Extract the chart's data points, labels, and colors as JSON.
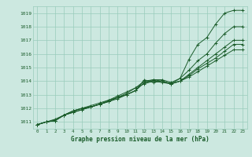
{
  "xlabel": "Graphe pression niveau de la mer (hPa)",
  "bg_color": "#cce8e0",
  "grid_color": "#99ccbb",
  "line_color": "#1a5c2a",
  "text_color": "#1a5c2a",
  "xlim": [
    -0.5,
    23.5
  ],
  "ylim": [
    1010.5,
    1019.5
  ],
  "yticks": [
    1011,
    1012,
    1013,
    1014,
    1015,
    1016,
    1017,
    1018,
    1019
  ],
  "xticks": [
    0,
    1,
    2,
    3,
    4,
    5,
    6,
    7,
    8,
    9,
    10,
    11,
    12,
    13,
    14,
    15,
    16,
    17,
    18,
    19,
    20,
    21,
    22,
    23
  ],
  "series": [
    {
      "x": [
        0,
        1,
        2,
        3,
        4,
        5,
        6,
        7,
        8,
        9,
        10,
        11,
        12,
        13,
        14,
        15,
        16,
        17,
        18,
        19,
        20,
        21,
        22,
        23
      ],
      "y": [
        1010.8,
        1011.0,
        1011.1,
        1011.5,
        1011.8,
        1012.0,
        1012.1,
        1012.3,
        1012.5,
        1012.7,
        1013.0,
        1013.3,
        1014.1,
        1013.9,
        1014.0,
        1013.8,
        1014.2,
        1015.6,
        1016.7,
        1017.2,
        1018.2,
        1019.0,
        1019.2,
        1019.2
      ]
    },
    {
      "x": [
        0,
        1,
        2,
        3,
        4,
        5,
        6,
        7,
        8,
        9,
        10,
        11,
        12,
        13,
        14,
        15,
        16,
        17,
        18,
        19,
        20,
        21,
        22,
        23
      ],
      "y": [
        1010.8,
        1011.0,
        1011.1,
        1011.5,
        1011.8,
        1012.0,
        1012.1,
        1012.3,
        1012.6,
        1012.8,
        1013.1,
        1013.5,
        1014.0,
        1014.1,
        1014.1,
        1013.9,
        1014.2,
        1014.8,
        1015.5,
        1016.0,
        1016.8,
        1017.5,
        1018.0,
        1018.0
      ]
    },
    {
      "x": [
        0,
        1,
        2,
        3,
        4,
        5,
        6,
        7,
        8,
        9,
        10,
        11,
        12,
        13,
        14,
        15,
        16,
        17,
        18,
        19,
        20,
        21,
        22,
        23
      ],
      "y": [
        1010.8,
        1011.0,
        1011.1,
        1011.5,
        1011.7,
        1011.9,
        1012.1,
        1012.3,
        1012.5,
        1012.8,
        1013.0,
        1013.3,
        1013.9,
        1014.1,
        1014.0,
        1013.8,
        1014.0,
        1014.5,
        1015.0,
        1015.5,
        1016.0,
        1016.5,
        1017.0,
        1017.0
      ]
    },
    {
      "x": [
        0,
        1,
        2,
        3,
        4,
        5,
        6,
        7,
        8,
        9,
        10,
        11,
        12,
        13,
        14,
        15,
        16,
        17,
        18,
        19,
        20,
        21,
        22,
        23
      ],
      "y": [
        1010.8,
        1011.0,
        1011.1,
        1011.5,
        1011.7,
        1011.9,
        1012.1,
        1012.3,
        1012.5,
        1012.8,
        1013.0,
        1013.3,
        1013.9,
        1014.0,
        1014.0,
        1013.8,
        1014.0,
        1014.4,
        1014.9,
        1015.3,
        1015.7,
        1016.2,
        1016.7,
        1016.7
      ]
    },
    {
      "x": [
        0,
        1,
        2,
        3,
        4,
        5,
        6,
        7,
        8,
        9,
        10,
        11,
        12,
        13,
        14,
        15,
        16,
        17,
        18,
        19,
        20,
        21,
        22,
        23
      ],
      "y": [
        1010.8,
        1011.0,
        1011.2,
        1011.5,
        1011.8,
        1012.0,
        1012.2,
        1012.4,
        1012.6,
        1012.9,
        1013.2,
        1013.5,
        1013.8,
        1014.0,
        1013.9,
        1013.8,
        1014.0,
        1014.3,
        1014.7,
        1015.1,
        1015.5,
        1015.9,
        1016.3,
        1016.3
      ]
    }
  ]
}
